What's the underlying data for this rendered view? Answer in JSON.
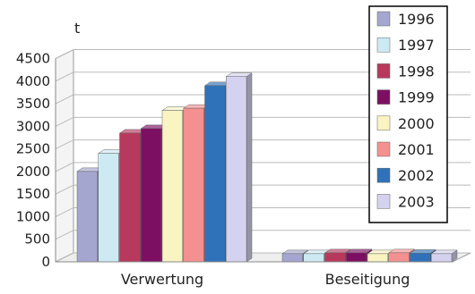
{
  "chart_data": {
    "type": "bar",
    "unit_label": "t",
    "categories": [
      "Verwertung",
      "Beseitigung"
    ],
    "series": [
      {
        "name": "1996",
        "color": "#a4a6cf",
        "values": [
          2000,
          180
        ]
      },
      {
        "name": "1997",
        "color": "#cdeaf3",
        "values": [
          2400,
          180
        ]
      },
      {
        "name": "1998",
        "color": "#b8395e",
        "values": [
          2850,
          200
        ]
      },
      {
        "name": "1999",
        "color": "#7d0f63",
        "values": [
          2950,
          200
        ]
      },
      {
        "name": "2000",
        "color": "#faf3c2",
        "values": [
          3350,
          180
        ]
      },
      {
        "name": "2001",
        "color": "#f4908f",
        "values": [
          3400,
          200
        ]
      },
      {
        "name": "2002",
        "color": "#2f72b9",
        "values": [
          3900,
          190
        ]
      },
      {
        "name": "2003",
        "color": "#d4d2ee",
        "values": [
          4100,
          180
        ]
      }
    ],
    "y_ticks": [
      "0",
      "500",
      "1000",
      "1500",
      "2000",
      "2500",
      "3000",
      "3500",
      "4000",
      "4500"
    ],
    "ylim": [
      0,
      4500
    ],
    "grid": true,
    "legend_position": "right"
  }
}
